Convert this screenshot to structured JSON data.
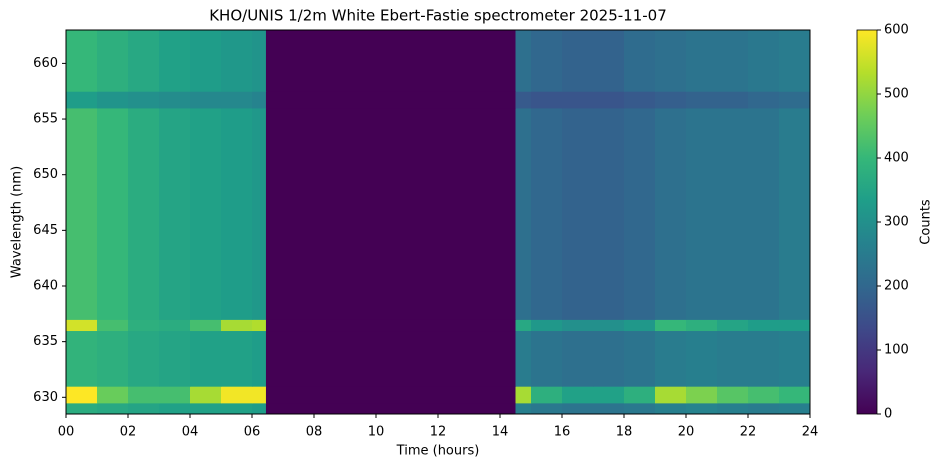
{
  "chart_data": {
    "type": "heatmap",
    "title": "KHO/UNIS 1/2m White Ebert-Fastie spectrometer 2025-11-07",
    "x_label": "Time (hours)",
    "y_label": "Wavelength (nm)",
    "colorbar_label": "Counts",
    "colormap": "viridis",
    "x_edges": [
      0,
      1,
      2,
      3,
      4,
      5,
      6,
      6.45,
      14.5,
      15,
      16,
      17,
      18,
      19,
      20,
      21,
      22,
      23,
      24
    ],
    "y_edges": [
      628.5,
      629.5,
      631,
      636,
      637,
      656,
      657.5,
      663
    ],
    "values": [
      [
        370,
        360,
        350,
        340,
        340,
        340,
        330,
        0,
        260,
        240,
        230,
        230,
        240,
        260,
        270,
        260,
        250,
        260
      ],
      [
        600,
        460,
        420,
        420,
        520,
        590,
        590,
        0,
        520,
        380,
        340,
        340,
        380,
        520,
        480,
        440,
        420,
        400
      ],
      [
        390,
        380,
        360,
        350,
        340,
        340,
        330,
        0,
        250,
        230,
        220,
        220,
        230,
        250,
        260,
        250,
        250,
        260
      ],
      [
        560,
        420,
        380,
        370,
        420,
        520,
        530,
        0,
        360,
        320,
        300,
        300,
        320,
        400,
        380,
        350,
        330,
        330
      ],
      [
        420,
        400,
        370,
        350,
        340,
        330,
        320,
        0,
        220,
        200,
        190,
        190,
        200,
        220,
        230,
        230,
        230,
        250
      ],
      [
        330,
        310,
        300,
        290,
        280,
        280,
        270,
        0,
        170,
        160,
        160,
        160,
        170,
        180,
        190,
        190,
        200,
        210
      ],
      [
        400,
        380,
        360,
        340,
        330,
        320,
        310,
        0,
        220,
        200,
        190,
        190,
        210,
        220,
        230,
        230,
        240,
        250
      ]
    ],
    "xlim": [
      0,
      24
    ],
    "ylim": [
      628.5,
      663
    ],
    "xticks": [
      {
        "value": 0,
        "label": "00"
      },
      {
        "value": 2,
        "label": "02"
      },
      {
        "value": 4,
        "label": "04"
      },
      {
        "value": 6,
        "label": "06"
      },
      {
        "value": 8,
        "label": "08"
      },
      10,
      12,
      14,
      16,
      18,
      20,
      22,
      24
    ],
    "yticks": [
      630,
      635,
      640,
      645,
      650,
      655,
      660
    ],
    "clim": [
      0,
      600
    ],
    "cticks": [
      0,
      100,
      200,
      300,
      400,
      500,
      600
    ]
  }
}
